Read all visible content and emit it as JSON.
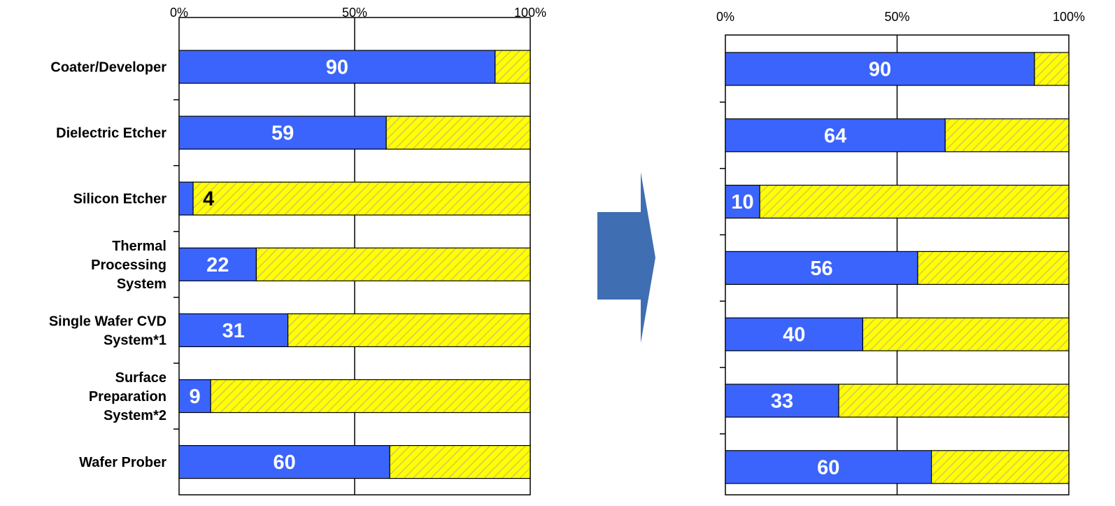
{
  "colors": {
    "share": "#3B64FC",
    "rest": "#FFFF00",
    "hatch": "#D2C85A",
    "arrow": "#3F6FB2",
    "gridline": "#000000"
  },
  "chart_data": [
    {
      "type": "bar",
      "orientation": "horizontal",
      "stacked": true,
      "percent": true,
      "categories": [
        "Coater/Developer",
        "Dielectric Etcher",
        "Silicon Etcher",
        "Thermal Processing System",
        "Single Wafer CVD System*1",
        "Surface Preparation System*2",
        "Wafer Prober"
      ],
      "category_lines": [
        [
          "Coater/Developer"
        ],
        [
          "Dielectric Etcher"
        ],
        [
          "Silicon Etcher"
        ],
        [
          "Thermal",
          "Processing",
          "System"
        ],
        [
          "Single Wafer CVD",
          "System*1"
        ],
        [
          "Surface",
          "Preparation",
          "System*2"
        ],
        [
          "Wafer Prober"
        ]
      ],
      "values": [
        90,
        59,
        4,
        22,
        31,
        9,
        60
      ],
      "xlim": [
        0,
        100
      ],
      "x_ticks": [
        "0%",
        "50%",
        "100%"
      ],
      "grid": true
    },
    {
      "type": "bar",
      "orientation": "horizontal",
      "stacked": true,
      "percent": true,
      "categories": [
        "Coater/Developer",
        "Dielectric Etcher",
        "Silicon Etcher",
        "Thermal Processing System",
        "Single Wafer CVD System*1",
        "Surface Preparation System*2",
        "Wafer Prober"
      ],
      "values": [
        90,
        64,
        10,
        56,
        40,
        33,
        60
      ],
      "xlim": [
        0,
        100
      ],
      "x_ticks": [
        "0%",
        "50%",
        "100%"
      ],
      "grid": true
    }
  ]
}
